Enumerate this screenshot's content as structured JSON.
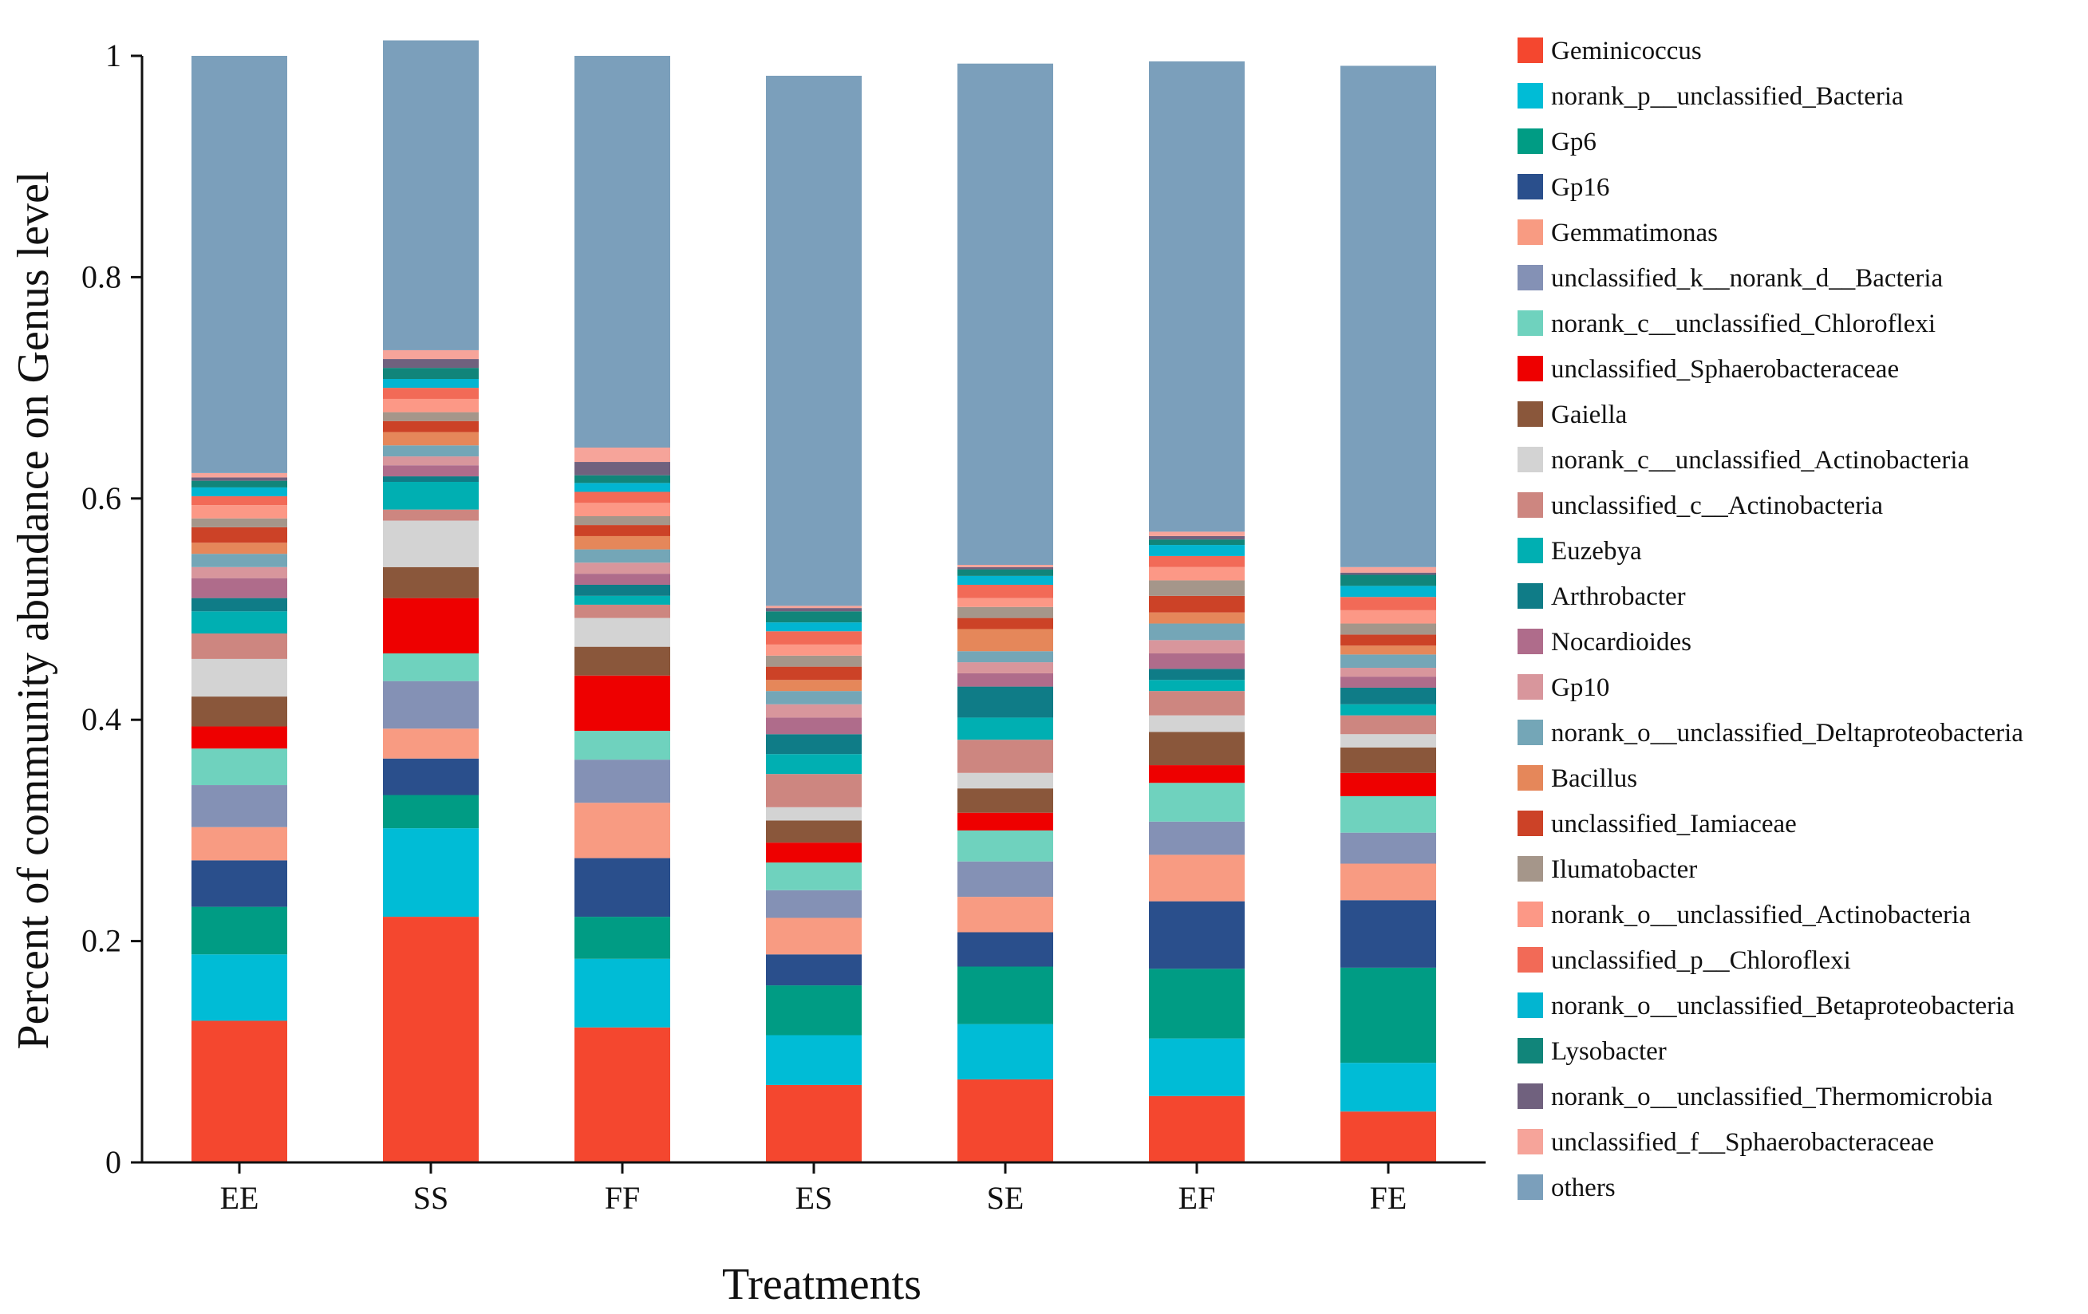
{
  "chart_data": {
    "type": "stacked-bar",
    "title": "",
    "xlabel": "Treatments",
    "ylabel": "Percent of community abundance on Genus level",
    "ylim": [
      0,
      1
    ],
    "yticks": [
      "0",
      "0.2",
      "0.4",
      "0.6",
      "0.8",
      "1"
    ],
    "ytick_values": [
      0,
      0.2,
      0.4,
      0.6,
      0.8,
      1.0
    ],
    "categories": [
      "EE",
      "SS",
      "FF",
      "ES",
      "SE",
      "EF",
      "FE"
    ],
    "legend_position": "right",
    "series": [
      {
        "name": "Geminicoccus",
        "color": "#f4472f",
        "values": [
          0.128,
          0.222,
          0.122,
          0.07,
          0.075,
          0.06,
          0.046
        ]
      },
      {
        "name": "norank_p__unclassified_Bacteria",
        "color": "#00bcd6",
        "values": [
          0.06,
          0.08,
          0.062,
          0.045,
          0.05,
          0.052,
          0.044
        ]
      },
      {
        "name": "Gp6",
        "color": "#009c84",
        "values": [
          0.043,
          0.03,
          0.038,
          0.045,
          0.052,
          0.063,
          0.086
        ]
      },
      {
        "name": "Gp16",
        "color": "#2a4f8c",
        "values": [
          0.042,
          0.033,
          0.053,
          0.028,
          0.031,
          0.061,
          0.061
        ]
      },
      {
        "name": "Gemmatimonas",
        "color": "#f89b82",
        "values": [
          0.03,
          0.027,
          0.05,
          0.033,
          0.032,
          0.042,
          0.033
        ]
      },
      {
        "name": "unclassified_k__norank_d__Bacteria",
        "color": "#8491b5",
        "values": [
          0.038,
          0.043,
          0.039,
          0.025,
          0.032,
          0.03,
          0.028
        ]
      },
      {
        "name": "norank_c__unclassified_Chloroflexi",
        "color": "#6fd2be",
        "values": [
          0.033,
          0.025,
          0.026,
          0.025,
          0.028,
          0.035,
          0.033
        ]
      },
      {
        "name": "unclassified_Sphaerobacteraceae",
        "color": "#ee0000",
        "values": [
          0.02,
          0.05,
          0.05,
          0.018,
          0.016,
          0.016,
          0.021
        ]
      },
      {
        "name": "Gaiella",
        "color": "#8a573b",
        "values": [
          0.027,
          0.028,
          0.026,
          0.02,
          0.022,
          0.03,
          0.023
        ]
      },
      {
        "name": "norank_c__unclassified_Actinobacteria",
        "color": "#d3d3d3",
        "values": [
          0.034,
          0.042,
          0.026,
          0.012,
          0.014,
          0.015,
          0.012
        ]
      },
      {
        "name": "unclassified_c__Actinobacteria",
        "color": "#cd8680",
        "values": [
          0.023,
          0.01,
          0.012,
          0.03,
          0.03,
          0.022,
          0.017
        ]
      },
      {
        "name": "Euzebya",
        "color": "#00afb2",
        "values": [
          0.02,
          0.025,
          0.008,
          0.018,
          0.02,
          0.01,
          0.01
        ]
      },
      {
        "name": "Arthrobacter",
        "color": "#0f7c87",
        "values": [
          0.012,
          0.005,
          0.01,
          0.018,
          0.028,
          0.01,
          0.015
        ]
      },
      {
        "name": "Nocardioides",
        "color": "#af6c8b",
        "values": [
          0.018,
          0.01,
          0.01,
          0.015,
          0.012,
          0.014,
          0.01
        ]
      },
      {
        "name": "Gp10",
        "color": "#d8969c",
        "values": [
          0.01,
          0.008,
          0.01,
          0.012,
          0.01,
          0.012,
          0.008
        ]
      },
      {
        "name": "norank_o__unclassified_Deltaproteobacteria",
        "color": "#74a6b7",
        "values": [
          0.012,
          0.01,
          0.012,
          0.012,
          0.01,
          0.015,
          0.012
        ]
      },
      {
        "name": "Bacillus",
        "color": "#e5875a",
        "values": [
          0.01,
          0.012,
          0.012,
          0.01,
          0.02,
          0.01,
          0.008
        ]
      },
      {
        "name": "unclassified_Iamiaceae",
        "color": "#cc4227",
        "values": [
          0.014,
          0.01,
          0.01,
          0.012,
          0.01,
          0.015,
          0.01
        ]
      },
      {
        "name": "Ilumatobacter",
        "color": "#a5968a",
        "values": [
          0.008,
          0.008,
          0.008,
          0.01,
          0.01,
          0.014,
          0.01
        ]
      },
      {
        "name": "norank_o__unclassified_Actinobacteria",
        "color": "#fc9886",
        "values": [
          0.012,
          0.012,
          0.012,
          0.01,
          0.008,
          0.012,
          0.012
        ]
      },
      {
        "name": "unclassified_p__Chloroflexi",
        "color": "#f26a57",
        "values": [
          0.008,
          0.01,
          0.01,
          0.012,
          0.012,
          0.01,
          0.012
        ]
      },
      {
        "name": "norank_o__unclassified_Betaproteobacteria",
        "color": "#02b5d1",
        "values": [
          0.008,
          0.008,
          0.008,
          0.008,
          0.008,
          0.01,
          0.01
        ]
      },
      {
        "name": "Lysobacter",
        "color": "#11857a",
        "values": [
          0.006,
          0.01,
          0.007,
          0.01,
          0.006,
          0.005,
          0.01
        ]
      },
      {
        "name": "norank_o__unclassified_Thermomicrobia",
        "color": "#70617e",
        "values": [
          0.003,
          0.008,
          0.012,
          0.003,
          0.002,
          0.003,
          0.002
        ]
      },
      {
        "name": "unclassified_f__Sphaerobacteraceae",
        "color": "#f6a49a",
        "values": [
          0.004,
          0.008,
          0.013,
          0.002,
          0.002,
          0.004,
          0.005
        ]
      },
      {
        "name": "others",
        "color": "#7b9fbb",
        "values": [
          0.377,
          0.28,
          0.354,
          0.479,
          0.453,
          0.425,
          0.453
        ]
      }
    ]
  }
}
